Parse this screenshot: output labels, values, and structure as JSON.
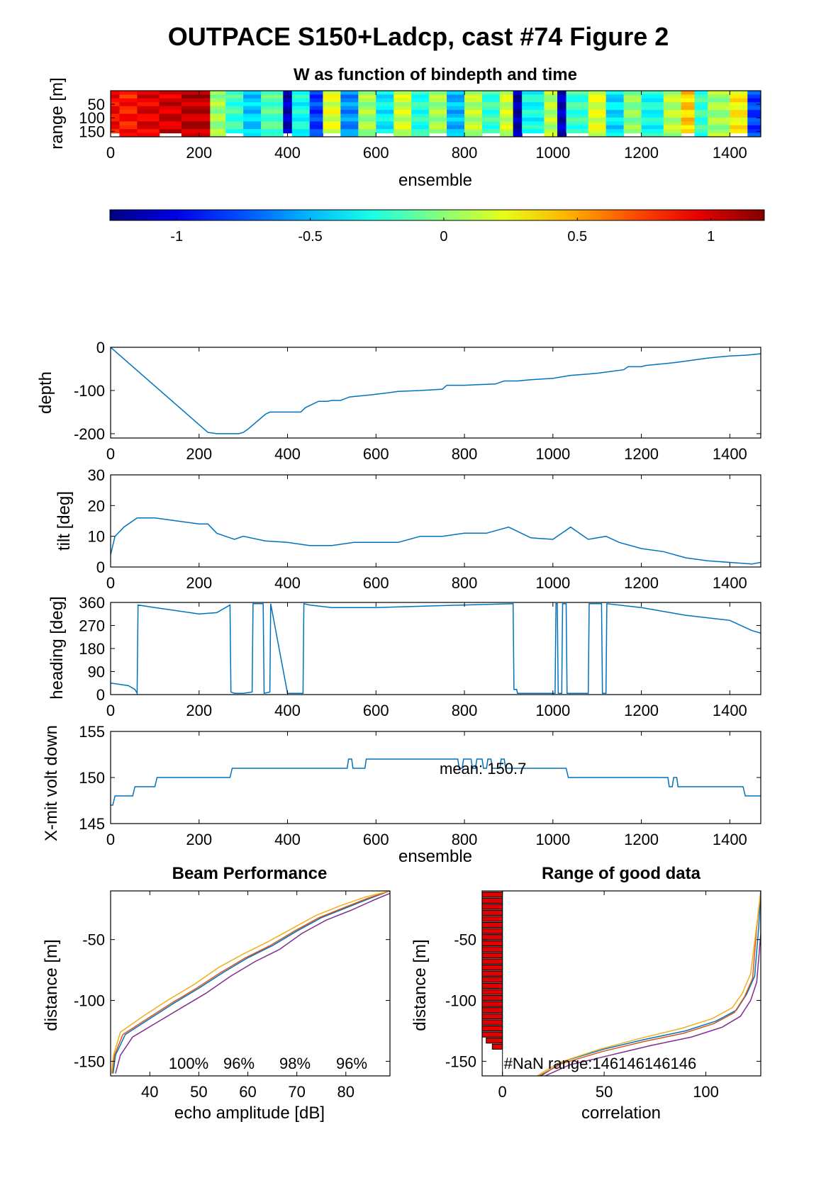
{
  "title": "OUTPACE S150+Ladcp, cast #74 Figure 2",
  "colors": {
    "line": "#0072BD",
    "bar": "#e00000"
  },
  "chart_data": [
    {
      "id": "w",
      "type": "heatmap",
      "title": "W as function of bindepth and time",
      "xlabel": "ensemble",
      "ylabel": "range [m]",
      "xlim": [
        0,
        1470
      ],
      "ylim": [
        170,
        0
      ],
      "xticks": [
        0,
        200,
        400,
        600,
        800,
        1000,
        1200,
        1400
      ],
      "yticks": [
        50,
        100,
        150
      ],
      "colormap": "jet",
      "clim": [
        -1.25,
        1.2
      ],
      "colorbar_ticks": [
        -1,
        -0.5,
        0,
        0.5,
        1
      ],
      "segments": [
        {
          "x": [
            0,
            20
          ],
          "w": 0.9
        },
        {
          "x": [
            20,
            60
          ],
          "w": 0.85
        },
        {
          "x": [
            60,
            110
          ],
          "w": 0.95
        },
        {
          "x": [
            110,
            160
          ],
          "w": 1.0
        },
        {
          "x": [
            160,
            225
          ],
          "w": 1.05
        },
        {
          "x": [
            225,
            260
          ],
          "w": 0.05
        },
        {
          "x": [
            260,
            300
          ],
          "w": -0.2
        },
        {
          "x": [
            300,
            340
          ],
          "w": -0.45
        },
        {
          "x": [
            340,
            390
          ],
          "w": -0.15
        },
        {
          "x": [
            390,
            410
          ],
          "w": -1.1
        },
        {
          "x": [
            410,
            450
          ],
          "w": -0.3
        },
        {
          "x": [
            450,
            480
          ],
          "w": -0.8
        },
        {
          "x": [
            480,
            520
          ],
          "w": 0.2
        },
        {
          "x": [
            520,
            560
          ],
          "w": -0.6
        },
        {
          "x": [
            560,
            600
          ],
          "w": 0.05
        },
        {
          "x": [
            600,
            640
          ],
          "w": -0.35
        },
        {
          "x": [
            640,
            680
          ],
          "w": 0.15
        },
        {
          "x": [
            680,
            720
          ],
          "w": -0.25
        },
        {
          "x": [
            720,
            760
          ],
          "w": 0.05
        },
        {
          "x": [
            760,
            800
          ],
          "w": -0.5
        },
        {
          "x": [
            800,
            840
          ],
          "w": 0.1
        },
        {
          "x": [
            840,
            880
          ],
          "w": -0.2
        },
        {
          "x": [
            880,
            910
          ],
          "w": 0.15
        },
        {
          "x": [
            910,
            930
          ],
          "w": -1.15
        },
        {
          "x": [
            930,
            980
          ],
          "w": -0.3
        },
        {
          "x": [
            980,
            1010
          ],
          "w": 0.1
        },
        {
          "x": [
            1010,
            1030
          ],
          "w": -1.1
        },
        {
          "x": [
            1030,
            1080
          ],
          "w": -0.2
        },
        {
          "x": [
            1080,
            1120
          ],
          "w": 0.2
        },
        {
          "x": [
            1120,
            1160
          ],
          "w": -0.4
        },
        {
          "x": [
            1160,
            1200
          ],
          "w": 0.0
        },
        {
          "x": [
            1200,
            1250
          ],
          "w": -0.3
        },
        {
          "x": [
            1250,
            1290
          ],
          "w": 0.1
        },
        {
          "x": [
            1290,
            1320
          ],
          "w": 0.4
        },
        {
          "x": [
            1320,
            1350
          ],
          "w": -0.2
        },
        {
          "x": [
            1350,
            1400
          ],
          "w": 0.05
        },
        {
          "x": [
            1400,
            1440
          ],
          "w": 0.3
        },
        {
          "x": [
            1440,
            1470
          ],
          "w": -0.8
        }
      ]
    },
    {
      "id": "depth",
      "type": "line",
      "xlabel": "",
      "ylabel": "depth",
      "xlim": [
        0,
        1470
      ],
      "ylim": [
        -210,
        0
      ],
      "xticks": [
        0,
        200,
        400,
        600,
        800,
        1000,
        1200,
        1400
      ],
      "yticks": [
        0,
        -100,
        -200
      ],
      "x": [
        0,
        220,
        240,
        290,
        300,
        310,
        350,
        360,
        430,
        440,
        470,
        490,
        500,
        520,
        540,
        560,
        590,
        630,
        650,
        700,
        750,
        760,
        800,
        820,
        870,
        890,
        920,
        950,
        1000,
        1010,
        1040,
        1080,
        1100,
        1160,
        1170,
        1200,
        1210,
        1250,
        1280,
        1300,
        1350,
        1400,
        1440,
        1470
      ],
      "y": [
        0,
        -197,
        -200,
        -200,
        -197,
        -190,
        -155,
        -150,
        -150,
        -140,
        -125,
        -125,
        -123,
        -123,
        -115,
        -113,
        -110,
        -105,
        -102,
        -100,
        -97,
        -88,
        -88,
        -87,
        -85,
        -78,
        -78,
        -75,
        -72,
        -70,
        -65,
        -62,
        -60,
        -52,
        -45,
        -45,
        -42,
        -38,
        -35,
        -32,
        -25,
        -20,
        -18,
        -15
      ]
    },
    {
      "id": "tilt",
      "type": "line",
      "ylabel": "tilt [deg]",
      "xlim": [
        0,
        1470
      ],
      "ylim": [
        0,
        30
      ],
      "xticks": [
        0,
        200,
        400,
        600,
        800,
        1000,
        1200,
        1400
      ],
      "yticks": [
        0,
        10,
        20,
        30
      ],
      "x": [
        0,
        10,
        30,
        60,
        100,
        150,
        200,
        220,
        240,
        260,
        280,
        300,
        350,
        400,
        450,
        500,
        550,
        600,
        650,
        700,
        750,
        800,
        850,
        900,
        950,
        1000,
        1040,
        1080,
        1120,
        1150,
        1200,
        1250,
        1300,
        1350,
        1400,
        1450,
        1470
      ],
      "y": [
        4,
        10,
        13,
        16,
        16,
        15,
        14,
        14,
        11,
        10,
        9,
        10,
        8.5,
        8,
        7,
        7,
        8,
        8,
        8,
        10,
        10,
        11,
        11,
        13,
        9.5,
        9,
        13,
        9,
        10,
        8,
        6,
        5,
        3,
        2,
        1.5,
        1,
        1.5
      ]
    },
    {
      "id": "heading",
      "type": "line",
      "ylabel": "heading [deg]",
      "xlim": [
        0,
        1470
      ],
      "ylim": [
        0,
        360
      ],
      "xticks": [
        0,
        200,
        400,
        600,
        800,
        1000,
        1200,
        1400
      ],
      "yticks": [
        0,
        90,
        180,
        270,
        360
      ],
      "x": [
        0,
        40,
        55,
        60,
        62,
        100,
        200,
        240,
        270,
        272,
        280,
        300,
        320,
        322,
        345,
        347,
        360,
        362,
        400,
        435,
        437,
        450,
        500,
        600,
        700,
        800,
        910,
        912,
        918,
        920,
        1005,
        1007,
        1010,
        1012,
        1020,
        1022,
        1030,
        1032,
        1080,
        1082,
        1110,
        1112,
        1120,
        1122,
        1200,
        1300,
        1400,
        1450,
        1470
      ],
      "y": [
        45,
        35,
        20,
        5,
        350,
        340,
        315,
        320,
        350,
        10,
        5,
        5,
        10,
        355,
        355,
        5,
        10,
        355,
        5,
        5,
        355,
        350,
        340,
        340,
        345,
        350,
        355,
        20,
        20,
        5,
        5,
        355,
        355,
        5,
        5,
        355,
        355,
        5,
        5,
        355,
        355,
        5,
        5,
        355,
        340,
        310,
        290,
        250,
        240
      ]
    },
    {
      "id": "voltage",
      "type": "line",
      "xlabel": "ensemble",
      "ylabel": "X-mit volt down",
      "xlim": [
        0,
        1470
      ],
      "ylim": [
        145,
        155
      ],
      "xticks": [
        0,
        200,
        400,
        600,
        800,
        1000,
        1200,
        1400
      ],
      "yticks": [
        145,
        150,
        155
      ],
      "annotation": "mean: 150.7",
      "x": [
        0,
        5,
        10,
        50,
        55,
        100,
        105,
        270,
        275,
        535,
        538,
        545,
        548,
        575,
        578,
        785,
        788,
        795,
        798,
        815,
        818,
        825,
        828,
        840,
        843,
        850,
        853,
        860,
        863,
        880,
        883,
        890,
        893,
        1030,
        1035,
        1260,
        1263,
        1270,
        1273,
        1280,
        1283,
        1290,
        1293,
        1430,
        1435,
        1470
      ],
      "y": [
        147,
        147,
        148,
        148,
        149,
        149,
        150,
        150,
        151,
        151,
        152,
        152,
        151,
        151,
        152,
        152,
        151,
        151,
        152,
        152,
        151,
        151,
        152,
        152,
        151,
        151,
        152,
        152,
        151,
        151,
        152,
        152,
        151,
        151,
        150,
        150,
        149,
        149,
        150,
        150,
        149,
        149,
        149,
        149,
        148,
        148
      ]
    },
    {
      "id": "beam",
      "type": "line",
      "title": "Beam Performance",
      "xlabel": "echo amplitude [dB]",
      "ylabel": "distance [m]",
      "xlim": [
        32,
        89
      ],
      "ylim": [
        -162,
        -10
      ],
      "xticks": [
        40,
        50,
        60,
        70,
        80
      ],
      "yticks": [
        -50,
        -100,
        -150
      ],
      "percent_labels": [
        "100%",
        "96%",
        "98%",
        "96%"
      ],
      "series": [
        {
          "color": "#0072BD",
          "x": [
            32.5,
            33,
            35,
            40,
            45,
            50,
            55,
            60,
            65,
            70,
            75,
            80,
            85,
            89
          ],
          "y": [
            -160,
            -145,
            -128,
            -115,
            -102,
            -90,
            -77,
            -65,
            -55,
            -43,
            -32,
            -24,
            -16,
            -10
          ]
        },
        {
          "color": "#D95319",
          "x": [
            32.3,
            32.8,
            34.5,
            39.5,
            44.5,
            49.5,
            54.5,
            59.5,
            64.5,
            69.5,
            74.5,
            79.5,
            84.5,
            89
          ],
          "y": [
            -160,
            -145,
            -128,
            -115,
            -102,
            -90,
            -77,
            -65,
            -55,
            -43,
            -32,
            -24,
            -16,
            -10
          ]
        },
        {
          "color": "#EDB120",
          "x": [
            32.2,
            32.6,
            34,
            39,
            44,
            49,
            54,
            59,
            64,
            69,
            74,
            79,
            84,
            89
          ],
          "y": [
            -160,
            -145,
            -126,
            -112,
            -99,
            -87,
            -73,
            -62,
            -52,
            -41,
            -30,
            -22,
            -15,
            -10
          ]
        },
        {
          "color": "#7E2F8E",
          "x": [
            33,
            34,
            36.5,
            41.5,
            46.5,
            51.5,
            56.5,
            61.5,
            66.5,
            71,
            76,
            81,
            86,
            89
          ],
          "y": [
            -160,
            -145,
            -130,
            -118,
            -106,
            -94,
            -80,
            -68,
            -58,
            -45,
            -34,
            -26,
            -17,
            -12
          ]
        }
      ]
    },
    {
      "id": "range",
      "type": "line",
      "title": "Range of good data",
      "xlabel": "correlation",
      "ylabel": "distance [m]",
      "xlim": [
        -10,
        127
      ],
      "ylim": [
        -162,
        -10
      ],
      "xticks": [
        0,
        50,
        100
      ],
      "yticks": [
        -50,
        -100,
        -150
      ],
      "annotation": "#NaN range:146146146146",
      "bars_y": [
        -13,
        -18,
        -23,
        -28,
        -33,
        -38,
        -43,
        -48,
        -53,
        -58,
        -63,
        -68,
        -73,
        -78,
        -83,
        -88,
        -93,
        -98,
        -103,
        -108,
        -113,
        -118,
        -123,
        -128,
        -133,
        -138
      ],
      "bars_x": [
        -10,
        -10,
        -10,
        -10,
        -10,
        -10,
        -10,
        -10,
        -10,
        -10,
        -10,
        -10,
        -10,
        -10,
        -10,
        -10,
        -10,
        -10,
        -10,
        -10,
        -10,
        -10,
        -10,
        -10,
        -8,
        -5
      ],
      "series": [
        {
          "color": "#0072BD",
          "x": [
            19,
            30,
            50,
            70,
            90,
            105,
            115,
            120,
            124,
            126,
            127
          ],
          "y": [
            -162,
            -150,
            -140,
            -132,
            -125,
            -117,
            -108,
            -95,
            -80,
            -40,
            -10
          ]
        },
        {
          "color": "#D95319",
          "x": [
            18,
            29,
            49,
            69,
            89,
            104,
            114,
            119,
            123,
            125,
            127
          ],
          "y": [
            -162,
            -152,
            -142,
            -134,
            -127,
            -119,
            -110,
            -97,
            -82,
            -40,
            -10
          ]
        },
        {
          "color": "#EDB120",
          "x": [
            17,
            28,
            48,
            68,
            88,
            103,
            113,
            118,
            122,
            125,
            127
          ],
          "y": [
            -162,
            -151,
            -140,
            -131,
            -123,
            -115,
            -106,
            -94,
            -78,
            -38,
            -10
          ]
        },
        {
          "color": "#7E2F8E",
          "x": [
            21,
            33,
            53,
            73,
            93,
            108,
            117,
            122,
            125,
            127,
            127
          ],
          "y": [
            -162,
            -153,
            -145,
            -137,
            -130,
            -122,
            -113,
            -100,
            -85,
            -45,
            -10
          ]
        }
      ]
    }
  ]
}
